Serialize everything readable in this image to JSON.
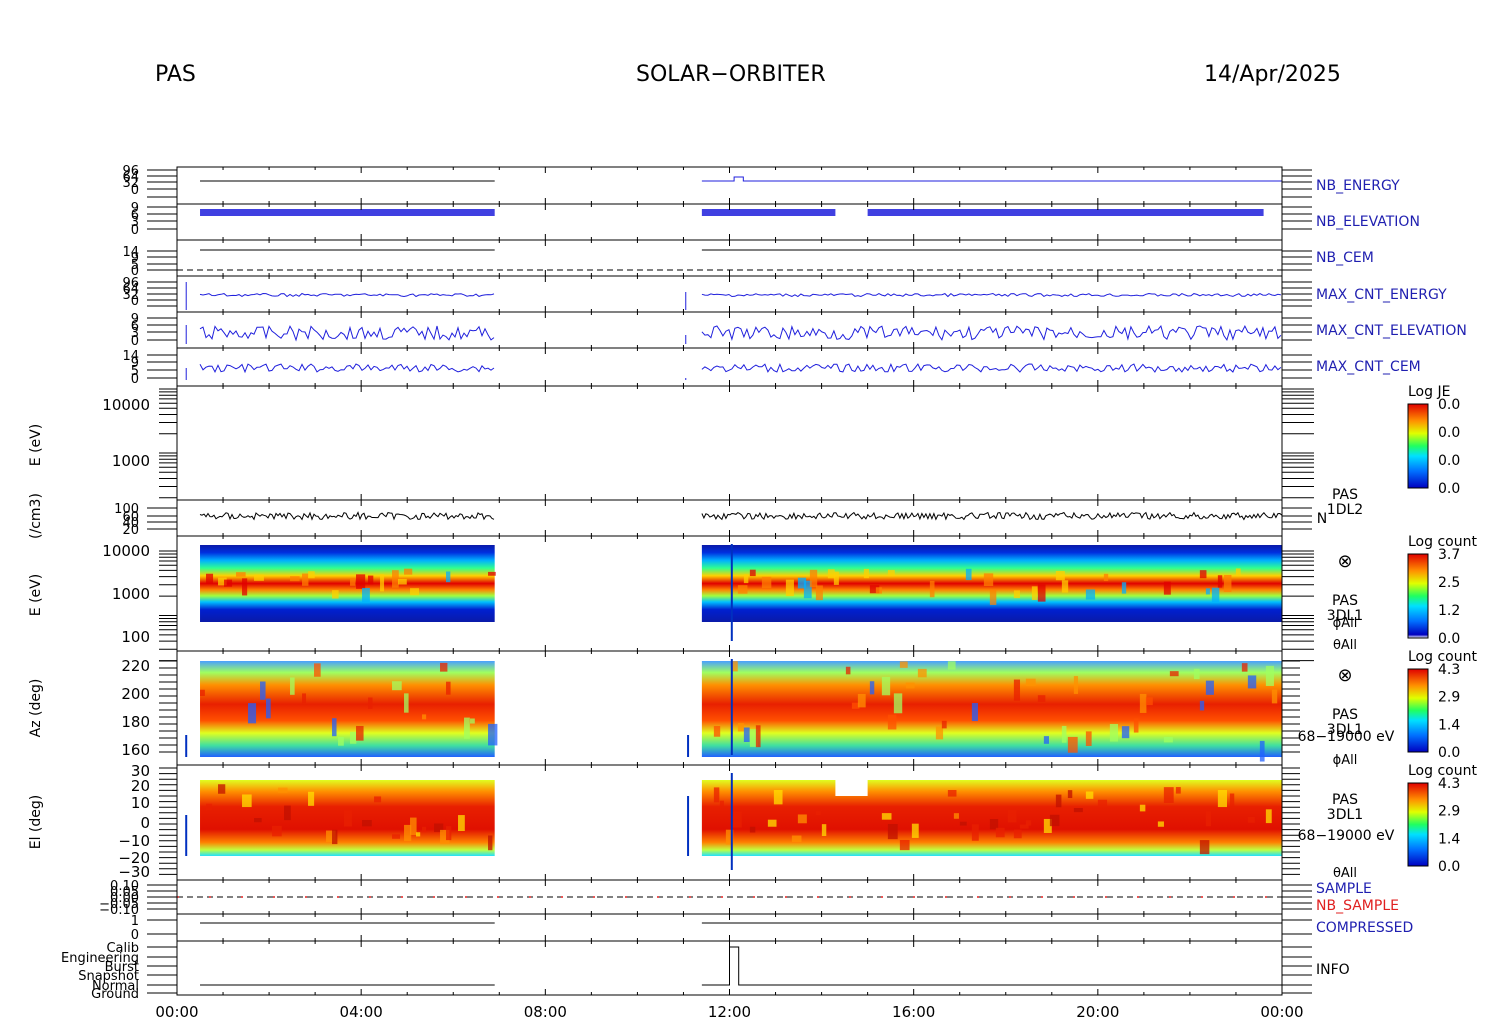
{
  "header": {
    "instrument": "PAS",
    "mission": "SOLAR−ORBITER",
    "date": "14/Apr/2025"
  },
  "colors": {
    "panel_label": "#1f1fb0",
    "trace_blue": "#1f1fdc",
    "trace_red": "#e02020",
    "axis": "#000000"
  },
  "chart_data": [
    {
      "type": "line",
      "id": "time_axis",
      "x_ticks": [
        "00:00",
        "04:00",
        "08:00",
        "12:00",
        "16:00",
        "20:00",
        "00:00"
      ],
      "x_range_hours": [
        0,
        24
      ]
    },
    {
      "type": "line",
      "id": "nb_energy",
      "panel_label": "NB_ENERGY",
      "ytick_labels": [
        "96",
        "64",
        "32",
        "0"
      ],
      "series": [
        {
          "color": "#1f1fdc",
          "segments": [
            {
              "x": [
                0.5,
                6.9
              ],
              "y": [
                0.2,
                0.2
              ]
            },
            {
              "x": [
                11.4,
                12.1,
                12.1,
                24
              ],
              "y": [
                0.2,
                0.2,
                0.6,
                0.6
              ]
            }
          ]
        }
      ]
    },
    {
      "type": "line",
      "id": "nb_elevation",
      "panel_label": "NB_ELEVATION",
      "ytick_labels": [
        "9",
        "6",
        "3",
        "0"
      ],
      "series": [
        {
          "color": "#1f1fdc",
          "segments": [
            {
              "x": [
                0.5,
                6.9
              ],
              "y": [
                7,
                7
              ]
            },
            {
              "x": [
                11.4,
                14.3
              ],
              "y": [
                7,
                7
              ]
            },
            {
              "x": [
                15.0,
                23.6
              ],
              "y": [
                7,
                7
              ]
            }
          ]
        }
      ]
    },
    {
      "type": "line",
      "id": "nb_cem",
      "panel_label": "NB_CEM",
      "ytick_labels": [
        "14",
        "9",
        "5",
        "0"
      ],
      "series": [
        {
          "color": "#000000",
          "segments": [
            {
              "x": [
                0.5,
                6.9
              ],
              "y": [
                12,
                12
              ]
            },
            {
              "x": [
                11.4,
                24
              ],
              "y": [
                12,
                12
              ]
            }
          ]
        }
      ]
    },
    {
      "type": "line",
      "id": "max_cnt_energy",
      "panel_label": "MAX_CNT_ENERGY",
      "ytick_labels": [
        "96",
        "64",
        "32",
        "0"
      ],
      "series": [
        {
          "color": "#1f1fdc",
          "segments": [
            {
              "x": [
                0.5,
                6.9
              ],
              "y": [
                52,
                52
              ]
            },
            {
              "x": [
                11.4,
                24
              ],
              "y": [
                54,
                54
              ]
            }
          ]
        }
      ]
    },
    {
      "type": "line",
      "id": "max_cnt_elevation",
      "panel_label": "MAX_CNT_ELEVATION",
      "ytick_labels": [
        "9",
        "6",
        "3",
        "0"
      ],
      "series": [
        {
          "color": "#1f1fdc",
          "segments": [
            {
              "x": [
                0.5,
                6.9
              ],
              "y": [
                5,
                5
              ]
            },
            {
              "x": [
                11.4,
                24
              ],
              "y": [
                4,
                4
              ]
            }
          ]
        }
      ]
    },
    {
      "type": "line",
      "id": "max_cnt_cem",
      "panel_label": "MAX_CNT_CEM",
      "ytick_labels": [
        "14",
        "9",
        "5",
        "0"
      ],
      "series": [
        {
          "color": "#1f1fdc",
          "segments": [
            {
              "x": [
                0.5,
                6.9
              ],
              "y": [
                7,
                7
              ]
            },
            {
              "x": [
                11.4,
                24
              ],
              "y": [
                5,
                5
              ]
            }
          ]
        }
      ]
    },
    {
      "type": "heatmap",
      "id": "je_spectrogram",
      "ylabel": "E (eV)",
      "ytick_labels": [
        "10000",
        "1000"
      ],
      "colorbar": {
        "title": "Log JE",
        "ticks": [
          "0.0",
          "0.0",
          "0.0",
          "0.0"
        ]
      },
      "data": "empty"
    },
    {
      "type": "line",
      "id": "density",
      "ylabel": "(/cm3)",
      "ytick_labels": [
        "100",
        "60",
        "40",
        "20"
      ],
      "right_labels": [
        "PAS",
        "1DL2",
        "N"
      ],
      "series": [
        {
          "color": "#000000",
          "segments": [
            {
              "x": [
                0.5,
                6.9
              ],
              "y": [
                62,
                62
              ]
            },
            {
              "x": [
                11.4,
                24
              ],
              "y": [
                58,
                58
              ]
            }
          ]
        }
      ]
    },
    {
      "type": "heatmap",
      "id": "energy_spectrogram",
      "ylabel": "E (eV)",
      "ytick_labels": [
        "10000",
        "1000",
        "100"
      ],
      "right_labels": [
        "⊗",
        "PAS",
        "3DL1",
        "ϕAll",
        "θAll"
      ],
      "colorbar": {
        "title": "Log count",
        "ticks": [
          "3.7",
          "2.5",
          "1.2",
          "0.0"
        ]
      },
      "data_intervals_hours": [
        [
          0.5,
          6.9
        ],
        [
          11.4,
          24
        ]
      ],
      "peak_energy_eV": 1000
    },
    {
      "type": "heatmap",
      "id": "azimuth_spectrogram",
      "ylabel": "Az (deg)",
      "ytick_labels": [
        "220",
        "200",
        "180",
        "160"
      ],
      "right_labels": [
        "⊗",
        "PAS",
        "3DL1",
        "68−19000 eV",
        "ϕAll"
      ],
      "colorbar": {
        "title": "Log count",
        "ticks": [
          "4.3",
          "2.9",
          "1.4",
          "0.0"
        ]
      },
      "data_intervals_hours": [
        [
          0.5,
          6.9
        ],
        [
          11.4,
          24
        ]
      ],
      "peak_azimuth_deg": 190
    },
    {
      "type": "heatmap",
      "id": "elevation_spectrogram",
      "ylabel": "El (deg)",
      "ytick_labels": [
        "30",
        "20",
        "10",
        "0",
        "−10",
        "−20",
        "−30"
      ],
      "right_labels": [
        "PAS",
        "3DL1",
        "68−19000 eV",
        "θAll"
      ],
      "colorbar": {
        "title": "Log count",
        "ticks": [
          "4.3",
          "2.9",
          "1.4",
          "0.0"
        ]
      },
      "data_intervals_hours": [
        [
          0.5,
          6.9
        ],
        [
          11.4,
          24
        ]
      ],
      "peak_elevation_deg": 5
    },
    {
      "type": "line",
      "id": "sample",
      "ytick_labels": [
        "0.10",
        "0.05",
        "0.00",
        "−0.05",
        "−0.10"
      ],
      "series": [
        {
          "name": "SAMPLE",
          "color": "#1f1fb0"
        },
        {
          "name": "NB_SAMPLE",
          "color": "#e02020"
        }
      ]
    },
    {
      "type": "line",
      "id": "compressed",
      "panel_label": "COMPRESSED",
      "ytick_labels": [
        "1",
        "0"
      ],
      "series": [
        {
          "color": "#000000",
          "segments": [
            {
              "x": [
                0.5,
                6.9
              ],
              "y": [
                0.7,
                0.7
              ]
            },
            {
              "x": [
                11.4,
                24
              ],
              "y": [
                0.7,
                0.7
              ]
            }
          ]
        }
      ]
    },
    {
      "type": "line",
      "id": "info",
      "panel_label": "INFO",
      "ytick_labels": [
        "Calib",
        "Engineering",
        "Burst",
        "Snapshot",
        "Normal",
        "Ground"
      ],
      "series": [
        {
          "color": "#000000",
          "segments": [
            {
              "x": [
                0.5,
                6.9
              ],
              "y": [
                "Normal",
                "Normal"
              ]
            },
            {
              "x": [
                11.4,
                12.0
              ],
              "y": [
                "Normal",
                "Normal"
              ]
            },
            {
              "x": [
                12.0,
                12.2,
                12.2,
                24
              ],
              "y": [
                "Calib",
                "Calib",
                "Normal",
                "Normal"
              ]
            }
          ]
        }
      ]
    }
  ]
}
